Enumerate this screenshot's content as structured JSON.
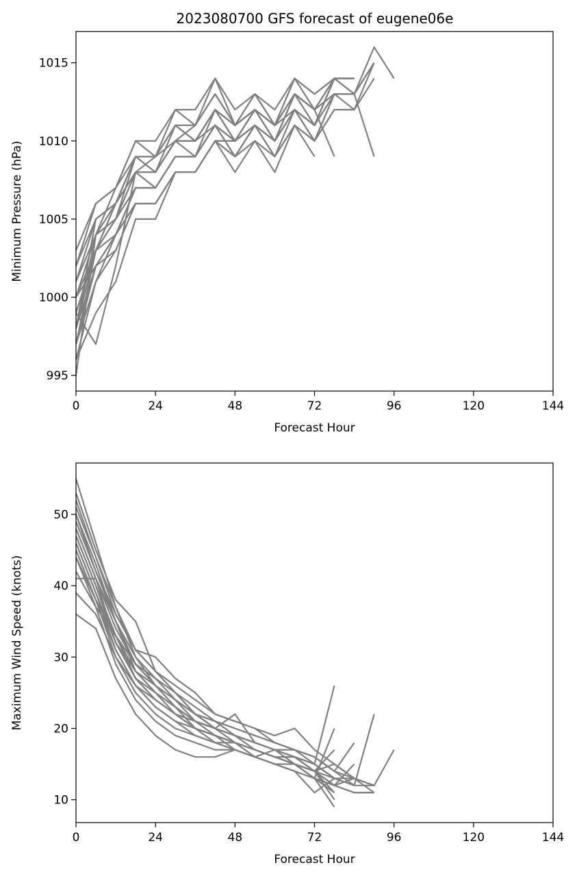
{
  "title": "2023080700 GFS forecast of eugene06e",
  "colors": {
    "series": "#808080",
    "axes": "#000000",
    "background": "#ffffff"
  },
  "chart_data": [
    {
      "type": "line",
      "xlabel": "Forecast Hour",
      "ylabel": "Minimum Pressure (hPa)",
      "xlim": [
        0,
        144
      ],
      "ylim": [
        994,
        1017
      ],
      "xticks": [
        0,
        24,
        48,
        72,
        96,
        120,
        144
      ],
      "yticks": [
        995,
        1000,
        1005,
        1010,
        1015
      ],
      "grid": false,
      "legend": "none",
      "x": [
        0,
        6,
        12,
        18,
        24,
        30,
        36,
        42,
        48,
        54,
        60,
        66,
        72,
        78,
        84,
        90,
        96
      ],
      "series": [
        {
          "values": [
            995,
            1004,
            1007,
            1010,
            1010,
            1012,
            1012,
            1014,
            1011,
            1013,
            1011,
            1014,
            1012,
            1014,
            1014,
            null,
            null
          ]
        },
        {
          "values": [
            998,
            1005,
            1006,
            1009,
            1009,
            1011,
            1011,
            1013,
            1011,
            1012,
            1011,
            1013,
            1012,
            1014,
            1013,
            1016,
            1014
          ]
        },
        {
          "values": [
            1002,
            1006,
            1007,
            1010,
            1009,
            1012,
            1011,
            1014,
            1012,
            1013,
            1012,
            1014,
            1013,
            1014,
            1013,
            1015,
            null
          ]
        },
        {
          "values": [
            1000,
            1003,
            1006,
            1008,
            1008,
            1011,
            1010,
            1012,
            1011,
            1012,
            1010,
            1013,
            1011,
            1013,
            1012,
            1015,
            null
          ]
        },
        {
          "values": [
            999,
            1003,
            1005,
            1009,
            1008,
            1010,
            1010,
            1012,
            1010,
            1012,
            1011,
            1013,
            1012,
            1013,
            1013,
            1009,
            null
          ]
        },
        {
          "values": [
            997,
            1002,
            1004,
            1007,
            1007,
            1009,
            1009,
            1011,
            1010,
            1011,
            1010,
            1012,
            1011,
            1014,
            null,
            null,
            null
          ]
        },
        {
          "values": [
            996,
            1001,
            1004,
            1006,
            1006,
            1008,
            1008,
            1010,
            1008,
            1010,
            1008,
            1011,
            1010,
            1012,
            1012,
            null,
            null
          ]
        },
        {
          "values": [
            1001,
            1005,
            1006,
            1008,
            1008,
            1010,
            1010,
            1012,
            1011,
            1012,
            1011,
            1013,
            1012,
            1009,
            null,
            null,
            null
          ]
        },
        {
          "values": [
            998,
            1004,
            1005,
            1008,
            1007,
            1009,
            1009,
            1011,
            1009,
            1011,
            1009,
            1012,
            1010,
            1013,
            null,
            null,
            null
          ]
        },
        {
          "values": [
            999,
            1003,
            1005,
            1007,
            1007,
            1009,
            1009,
            1011,
            1009,
            1011,
            1009,
            1011,
            1009,
            null,
            null,
            null,
            null
          ]
        },
        {
          "values": [
            1003,
            1006,
            1007,
            1009,
            1009,
            1011,
            1010,
            1012,
            1010,
            1012,
            1010,
            1013,
            1011,
            1013,
            1013,
            1015,
            null
          ]
        },
        {
          "values": [
            1000,
            1002,
            1003,
            1006,
            1006,
            1008,
            1008,
            1010,
            1010,
            1011,
            1010,
            1012,
            1010,
            1013,
            null,
            null,
            null
          ]
        },
        {
          "values": [
            998,
            1002,
            1004,
            1006,
            1006,
            1008,
            1008,
            1010,
            1009,
            1011,
            1010,
            1012,
            1011,
            1014,
            1014,
            null,
            null
          ]
        },
        {
          "values": [
            996,
            999,
            1001,
            1005,
            1005,
            1008,
            1008,
            1010,
            1010,
            1011,
            1010,
            1013,
            1012,
            null,
            null,
            null,
            null
          ]
        },
        {
          "values": [
            997,
            1001,
            1003,
            1006,
            1006,
            1008,
            1008,
            1010,
            1009,
            1010,
            1009,
            1011,
            1010,
            1012,
            1012,
            1014,
            null
          ]
        },
        {
          "values": [
            999,
            997,
            1002,
            1008,
            1009,
            1010,
            1010,
            1011,
            1010,
            1012,
            1011,
            1012,
            1011,
            1014,
            null,
            null,
            null
          ]
        },
        {
          "values": [
            1000,
            1004,
            1006,
            1009,
            1008,
            1010,
            1011,
            1013,
            1011,
            1012,
            1011,
            1013,
            1012,
            null,
            null,
            null,
            null
          ]
        },
        {
          "values": [
            1002,
            1005,
            1006,
            1008,
            1008,
            1010,
            1009,
            1011,
            1010,
            1011,
            1010,
            1012,
            1011,
            1014,
            1014,
            null,
            null
          ]
        },
        {
          "values": [
            998,
            1003,
            1004,
            1007,
            1007,
            1009,
            1009,
            1012,
            1010,
            1012,
            1010,
            1013,
            1012,
            1013,
            1013,
            1015,
            null
          ]
        },
        {
          "values": [
            1001,
            1004,
            1005,
            1008,
            1008,
            1010,
            1010,
            1012,
            1011,
            1012,
            1011,
            1013,
            1012,
            null,
            null,
            null,
            null
          ]
        },
        {
          "values": [
            997,
            1003,
            1006,
            1009,
            1009,
            1011,
            1011,
            1013,
            1011,
            1013,
            1011,
            1014,
            1013,
            1014,
            1014,
            null,
            null
          ]
        }
      ]
    },
    {
      "type": "line",
      "xlabel": "Forecast Hour",
      "ylabel": "Maximum Wind Speed (knots)",
      "xlim": [
        0,
        144
      ],
      "ylim": [
        6.8,
        57.2
      ],
      "xticks": [
        0,
        24,
        48,
        72,
        96,
        120,
        144
      ],
      "yticks": [
        10,
        20,
        30,
        40,
        50
      ],
      "grid": false,
      "legend": "none",
      "x": [
        0,
        6,
        12,
        18,
        24,
        30,
        36,
        42,
        48,
        54,
        60,
        66,
        72,
        78,
        84,
        90,
        96
      ],
      "series": [
        {
          "values": [
            55,
            46,
            37,
            30,
            26,
            24,
            22,
            20,
            19,
            18,
            17,
            16,
            15,
            26,
            null,
            null,
            null
          ]
        },
        {
          "values": [
            52,
            44,
            36,
            31,
            28,
            25,
            22,
            21,
            20,
            19,
            18,
            17,
            16,
            14,
            18,
            null,
            null
          ]
        },
        {
          "values": [
            50,
            42,
            35,
            28,
            25,
            23,
            21,
            20,
            22,
            18,
            17,
            16,
            15,
            13,
            13,
            11,
            null
          ]
        },
        {
          "values": [
            48,
            41,
            34,
            29,
            26,
            24,
            22,
            20,
            19,
            18,
            17,
            15,
            14,
            12,
            13,
            12,
            17
          ]
        },
        {
          "values": [
            47,
            40,
            33,
            27,
            24,
            22,
            21,
            19,
            18,
            17,
            16,
            15,
            13,
            11,
            null,
            null,
            null
          ]
        },
        {
          "values": [
            46,
            39,
            31,
            26,
            23,
            21,
            20,
            19,
            18,
            17,
            16,
            15,
            14,
            10,
            null,
            null,
            null
          ]
        },
        {
          "values": [
            45,
            38,
            30,
            25,
            22,
            20,
            19,
            18,
            17,
            16,
            15,
            14,
            13,
            9,
            null,
            null,
            null
          ]
        },
        {
          "values": [
            44,
            37,
            29,
            24,
            21,
            19,
            18,
            17,
            17,
            16,
            15,
            14,
            11,
            13,
            12,
            22,
            null
          ]
        },
        {
          "values": [
            41,
            41,
            32,
            27,
            24,
            22,
            20,
            18,
            17,
            16,
            15,
            15,
            14,
            12,
            15,
            null,
            null
          ]
        },
        {
          "values": [
            39,
            36,
            30,
            26,
            23,
            21,
            19,
            18,
            18,
            17,
            16,
            16,
            14,
            11,
            null,
            null,
            null
          ]
        },
        {
          "values": [
            36,
            34,
            27,
            22,
            19,
            17,
            16,
            16,
            17,
            16,
            15,
            14,
            13,
            12,
            11,
            11,
            null
          ]
        },
        {
          "values": [
            53,
            45,
            38,
            35,
            28,
            25,
            22,
            21,
            19,
            18,
            17,
            17,
            15,
            13,
            null,
            null,
            null
          ]
        },
        {
          "values": [
            50,
            43,
            35,
            29,
            27,
            24,
            21,
            20,
            19,
            17,
            16,
            16,
            14,
            13,
            12,
            12,
            null
          ]
        },
        {
          "values": [
            49,
            42,
            36,
            31,
            30,
            27,
            25,
            22,
            21,
            20,
            19,
            20,
            17,
            15,
            13,
            null,
            null
          ]
        },
        {
          "values": [
            47,
            40,
            32,
            27,
            25,
            22,
            20,
            19,
            18,
            16,
            17,
            16,
            14,
            17,
            null,
            null,
            null
          ]
        },
        {
          "values": [
            46,
            39,
            32,
            28,
            25,
            23,
            20,
            19,
            18,
            17,
            16,
            15,
            14,
            12,
            11,
            11,
            null
          ]
        },
        {
          "values": [
            44,
            38,
            31,
            26,
            24,
            22,
            20,
            19,
            17,
            16,
            15,
            15,
            13,
            20,
            null,
            null,
            null
          ]
        },
        {
          "values": [
            42,
            37,
            33,
            29,
            26,
            23,
            21,
            20,
            18,
            17,
            16,
            15,
            14,
            15,
            13,
            null,
            null
          ]
        },
        {
          "values": [
            48,
            41,
            35,
            30,
            27,
            25,
            23,
            21,
            20,
            19,
            18,
            17,
            16,
            14,
            12,
            null,
            null
          ]
        },
        {
          "values": [
            51,
            44,
            37,
            31,
            28,
            26,
            24,
            22,
            21,
            20,
            18,
            17,
            16,
            14,
            13,
            12,
            null
          ]
        },
        {
          "values": [
            45,
            38,
            33,
            28,
            26,
            23,
            21,
            20,
            19,
            18,
            17,
            16,
            15,
            13,
            null,
            null,
            null
          ]
        }
      ]
    }
  ]
}
